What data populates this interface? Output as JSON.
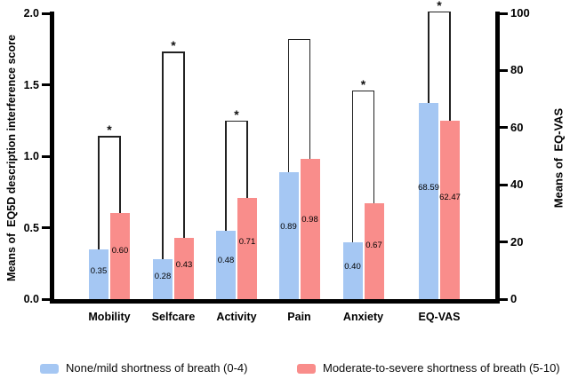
{
  "chart_data": {
    "type": "bar",
    "title": "",
    "categories": [
      "Mobility",
      "Selfcare",
      "Activity",
      "Pain",
      "Anxiety",
      "EQ-VAS"
    ],
    "category_axis": [
      "left",
      "left",
      "left",
      "left",
      "left",
      "right"
    ],
    "series": [
      {
        "name": "None/mild shortness of breath (0-4)",
        "color": "#A5C7F3",
        "values": [
          0.35,
          0.28,
          0.48,
          0.89,
          0.4,
          68.59
        ]
      },
      {
        "name": "Moderate-to-severe shortness of breath (5-10)",
        "color": "#F98D8B",
        "values": [
          0.6,
          0.43,
          0.71,
          0.98,
          0.67,
          62.47
        ]
      }
    ],
    "bar_labels": [
      [
        "0.35",
        "0.28",
        "0.48",
        "0.89",
        "0.40",
        "68.59"
      ],
      [
        "0.60",
        "0.43",
        "0.71",
        "0.98",
        "0.67",
        "62.47"
      ]
    ],
    "significance_brackets": [
      {
        "category": "Mobility",
        "top": 1.14,
        "label": "*"
      },
      {
        "category": "Selfcare",
        "top": 1.73,
        "label": "*"
      },
      {
        "category": "Activity",
        "top": 1.25,
        "label": "*"
      },
      {
        "category": "Pain",
        "top": 1.82,
        "label": ""
      },
      {
        "category": "Anxiety",
        "top": 1.46,
        "label": "*"
      },
      {
        "category": "EQ-VAS",
        "top": 100.6,
        "label": "*"
      }
    ],
    "left_axis": {
      "title": "Means of  EQ5D description interference score",
      "ticks": [
        "0.0",
        "0.5",
        "1.0",
        "1.5",
        "2.0"
      ],
      "range": [
        0,
        2
      ]
    },
    "right_axis": {
      "title": "Means of  EQ-VAS",
      "ticks": [
        "0",
        "20",
        "40",
        "60",
        "80",
        "100"
      ],
      "range": [
        0,
        100
      ]
    },
    "legend": {
      "position": "bottom",
      "items": [
        "None/mild shortness of breath (0-4)",
        "Moderate-to-severe shortness of breath (5-10)"
      ]
    },
    "grid": false
  }
}
